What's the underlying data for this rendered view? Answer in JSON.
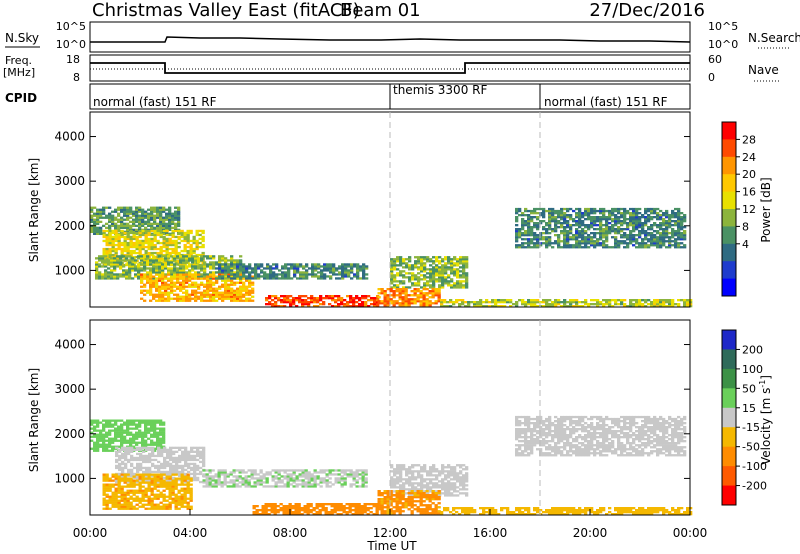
{
  "header": {
    "title": "Christmas Valley East (fitACF)",
    "beam": "Beam 01",
    "date": "27/Dec/2016"
  },
  "params": {
    "nsky_label": "N.Sky",
    "nsearch_label": "N.Search",
    "noise_ticks": [
      "10^5",
      "10^0"
    ],
    "freq_label_line1": "Freq.",
    "freq_label_line2": "[MHz]",
    "freq_ticks": [
      "18",
      "8"
    ],
    "nave_label": "Nave",
    "nave_ticks": [
      "60",
      "0"
    ],
    "cpid_label": "CPID",
    "cpid_segments": [
      {
        "label": "normal (fast) 151 RF",
        "start_hour": 0
      },
      {
        "label": "themis 3300 RF",
        "start_hour": 12
      },
      {
        "label": "normal (fast) 151 RF",
        "start_hour": 18
      }
    ]
  },
  "axes": {
    "ylabel": "Slant Range [km]",
    "yticks": [
      "4000",
      "3000",
      "2000",
      "1000"
    ],
    "xticks": [
      "00:00",
      "04:00",
      "08:00",
      "12:00",
      "16:00",
      "20:00",
      "00:00"
    ],
    "xlabel": "Time UT"
  },
  "colorbars": {
    "power": {
      "label": "Power [dB]",
      "ticks": [
        "28",
        "24",
        "20",
        "16",
        "12",
        "8",
        "4"
      ],
      "colors": [
        "#ff0000",
        "#ff4a00",
        "#ff9500",
        "#ffc800",
        "#e8e000",
        "#8cb43c",
        "#4a9164",
        "#2f6b82",
        "#1e3ccd",
        "#0000ff"
      ]
    },
    "velocity": {
      "label": "Velocity [m s",
      "label_sup": "-1",
      "label_end": "]",
      "ticks": [
        "200",
        "100",
        "50",
        "15",
        "-15",
        "-50",
        "-100",
        "-200"
      ],
      "colors": [
        "#1e28c8",
        "#2f6b5a",
        "#3c9146",
        "#6ad05a",
        "#c8c8c8",
        "#f5b800",
        "#ff8c00",
        "#ff5a00",
        "#ff0000"
      ]
    }
  },
  "chart_data": [
    {
      "type": "heatmap",
      "panel": "power",
      "ylim": [
        180,
        4550
      ],
      "xlim_hours": [
        0,
        24
      ],
      "colorbar_range_db": [
        0,
        32
      ],
      "regions": [
        {
          "t0": 0.0,
          "t1": 3.5,
          "r0": 1800,
          "r1": 2400,
          "value": 12
        },
        {
          "t0": 0.5,
          "t1": 4.5,
          "r0": 1100,
          "r1": 1900,
          "value": 18
        },
        {
          "t0": 0.2,
          "t1": 6.0,
          "r0": 800,
          "r1": 1300,
          "value": 14
        },
        {
          "t0": 2.0,
          "t1": 6.5,
          "r0": 300,
          "r1": 900,
          "value": 22
        },
        {
          "t0": 5.0,
          "t1": 11.0,
          "r0": 800,
          "r1": 1150,
          "value": 10
        },
        {
          "t0": 7.0,
          "t1": 11.5,
          "r0": 180,
          "r1": 450,
          "value": 28
        },
        {
          "t0": 12.0,
          "t1": 15.0,
          "r0": 600,
          "r1": 1300,
          "value": 14
        },
        {
          "t0": 11.5,
          "t1": 14.0,
          "r0": 200,
          "r1": 600,
          "value": 24
        },
        {
          "t0": 14.0,
          "t1": 24.0,
          "r0": 180,
          "r1": 350,
          "value": 16
        },
        {
          "t0": 17.0,
          "t1": 23.8,
          "r0": 1500,
          "r1": 2400,
          "value": 10
        }
      ]
    },
    {
      "type": "heatmap",
      "panel": "velocity",
      "ylim": [
        180,
        4550
      ],
      "xlim_hours": [
        0,
        24
      ],
      "colorbar_range_ms": [
        -250,
        250
      ],
      "regions": [
        {
          "t0": 0.0,
          "t1": 3.0,
          "r0": 1600,
          "r1": 2300,
          "value": 30
        },
        {
          "t0": 1.0,
          "t1": 4.5,
          "r0": 900,
          "r1": 1700,
          "value": 0
        },
        {
          "t0": 0.5,
          "t1": 4.0,
          "r0": 300,
          "r1": 1100,
          "value": -40
        },
        {
          "t0": 4.5,
          "t1": 11.0,
          "r0": 800,
          "r1": 1200,
          "value": 10
        },
        {
          "t0": 6.5,
          "t1": 11.5,
          "r0": 180,
          "r1": 450,
          "value": -80
        },
        {
          "t0": 12.0,
          "t1": 15.0,
          "r0": 600,
          "r1": 1300,
          "value": 0
        },
        {
          "t0": 11.5,
          "t1": 14.0,
          "r0": 200,
          "r1": 700,
          "value": -60
        },
        {
          "t0": 14.0,
          "t1": 24.0,
          "r0": 180,
          "r1": 350,
          "value": -30
        },
        {
          "t0": 17.0,
          "t1": 23.8,
          "r0": 1500,
          "r1": 2400,
          "value": 0
        }
      ]
    }
  ]
}
